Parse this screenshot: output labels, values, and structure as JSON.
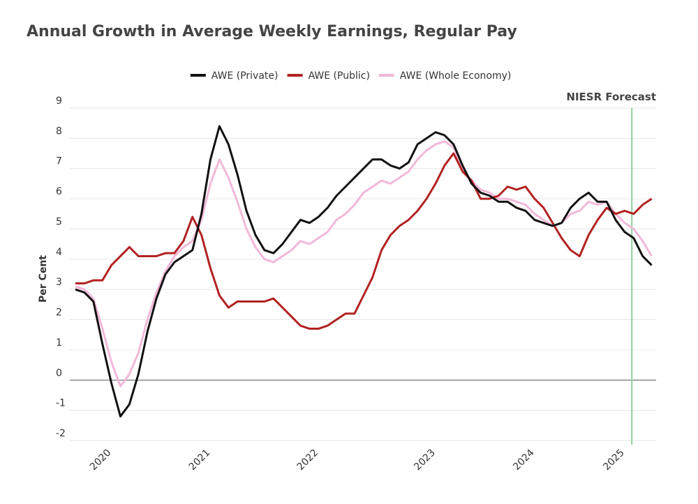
{
  "chart_data": {
    "type": "line",
    "title": "Annual Growth in Average Weekly Earnings, Regular Pay",
    "ylabel": "Per Cent",
    "categories": [
      null,
      null,
      null,
      null,
      "2020",
      null,
      null,
      null,
      null,
      null,
      null,
      null,
      null,
      null,
      null,
      "2021",
      null,
      null,
      null,
      null,
      null,
      null,
      null,
      null,
      null,
      null,
      null,
      "2022",
      null,
      null,
      null,
      null,
      null,
      null,
      null,
      null,
      null,
      null,
      null,
      null,
      "2023",
      null,
      null,
      null,
      null,
      null,
      null,
      null,
      null,
      null,
      null,
      "2024",
      null,
      null,
      null,
      null,
      null,
      null,
      null,
      null,
      null,
      "2025",
      null,
      null,
      null
    ],
    "series": [
      {
        "name": "AWE (Private)",
        "color": "#111111",
        "values": [
          3.0,
          2.9,
          2.6,
          1.2,
          -0.1,
          -1.2,
          -0.8,
          0.2,
          1.6,
          2.7,
          3.5,
          3.9,
          4.1,
          4.3,
          5.5,
          7.3,
          8.4,
          7.8,
          6.8,
          5.6,
          4.8,
          4.3,
          4.2,
          4.5,
          4.9,
          5.3,
          5.2,
          5.4,
          5.7,
          6.1,
          6.4,
          6.7,
          7.0,
          7.3,
          7.3,
          7.1,
          7.0,
          7.2,
          7.8,
          8.0,
          8.2,
          8.1,
          7.8,
          7.1,
          6.5,
          6.2,
          6.1,
          5.9,
          5.9,
          5.7,
          5.6,
          5.3,
          5.2,
          5.1,
          5.2,
          5.7,
          6.0,
          6.2,
          5.9,
          5.9,
          5.3,
          4.9,
          4.7,
          4.1,
          3.8
        ]
      },
      {
        "name": "AWE (Public)",
        "color": "#b22222",
        "values": [
          3.2,
          3.2,
          3.3,
          3.3,
          3.8,
          4.1,
          4.4,
          4.1,
          4.1,
          4.1,
          4.2,
          4.2,
          4.6,
          5.4,
          4.8,
          3.7,
          2.8,
          2.4,
          2.6,
          2.6,
          2.6,
          2.6,
          2.7,
          2.4,
          2.1,
          1.8,
          1.7,
          1.7,
          1.8,
          2.0,
          2.2,
          2.2,
          2.8,
          3.4,
          4.3,
          4.8,
          5.1,
          5.3,
          5.6,
          6.0,
          6.5,
          7.1,
          7.5,
          6.9,
          6.6,
          6.0,
          6.0,
          6.1,
          6.4,
          6.3,
          6.4,
          6.0,
          5.7,
          5.2,
          4.7,
          4.3,
          4.1,
          4.8,
          5.3,
          5.7,
          5.5,
          5.6,
          5.5,
          5.8,
          6.0
        ]
      },
      {
        "name": "AWE (Whole Economy)",
        "color": "#f2b8d8",
        "values": [
          3.1,
          3.0,
          2.7,
          1.7,
          0.6,
          -0.2,
          0.2,
          0.9,
          2.0,
          2.9,
          3.6,
          4.1,
          4.4,
          4.6,
          5.3,
          6.5,
          7.3,
          6.7,
          5.9,
          5.0,
          4.4,
          4.0,
          3.9,
          4.1,
          4.3,
          4.6,
          4.5,
          4.7,
          4.9,
          5.3,
          5.5,
          5.8,
          6.2,
          6.4,
          6.6,
          6.5,
          6.7,
          6.9,
          7.3,
          7.6,
          7.8,
          7.9,
          7.7,
          7.0,
          6.6,
          6.3,
          6.2,
          6.0,
          6.0,
          5.9,
          5.8,
          5.5,
          5.3,
          5.1,
          5.2,
          5.5,
          5.6,
          5.9,
          5.8,
          5.9,
          5.5,
          5.2,
          5.0,
          4.6,
          4.1
        ]
      }
    ],
    "ylim": [
      -2,
      9
    ],
    "yticks": [
      -2,
      -1,
      0,
      1,
      2,
      3,
      4,
      5,
      6,
      7,
      8,
      9
    ],
    "grid": true,
    "legend": "top",
    "annotation": {
      "text": "NIESR Forecast",
      "x": 61.8,
      "color": "#8fcf9f"
    }
  }
}
